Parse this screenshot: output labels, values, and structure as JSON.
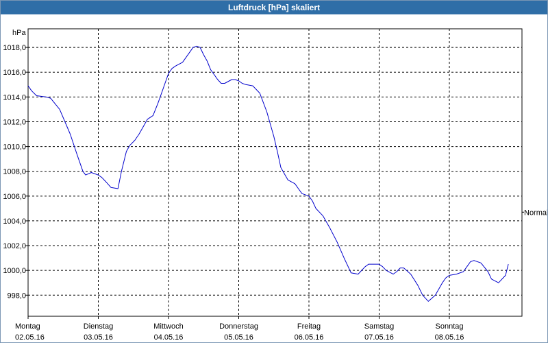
{
  "window": {
    "title": "Luftdruck [hPa] skaliert"
  },
  "chart_data": {
    "type": "line",
    "title": "Luftdruck [hPa] skaliert",
    "ylabel": "hPa",
    "xlabel": "",
    "ylim": [
      996.3,
      1019.5
    ],
    "grid": true,
    "yticks": [
      998,
      1000,
      1002,
      1004,
      1006,
      1008,
      1010,
      1012,
      1014,
      1016,
      1018
    ],
    "ytick_labels": [
      "998,0",
      "1000,0",
      "1002,0",
      "1004,0",
      "1006,0",
      "1008,0",
      "1010,0",
      "1012,0",
      "1014,0",
      "1016,0",
      "1018,0"
    ],
    "xticks": [
      {
        "day": "Montag",
        "date": "02.05.16"
      },
      {
        "day": "Dienstag",
        "date": "03.05.16"
      },
      {
        "day": "Mittwoch",
        "date": "04.05.16"
      },
      {
        "day": "Donnerstag",
        "date": "05.05.16"
      },
      {
        "day": "Freitag",
        "date": "06.05.16"
      },
      {
        "day": "Samstag",
        "date": "07.05.16"
      },
      {
        "day": "Sonntag",
        "date": "08.05.16"
      }
    ],
    "reference_line": {
      "label": "Normal",
      "value": 1004.7
    },
    "series_color": "#0000cc",
    "series": [
      {
        "x_days": [
          0,
          0.05,
          0.12,
          0.25,
          0.32,
          0.45,
          0.6,
          0.7,
          0.78,
          0.82,
          0.9,
          1.0,
          1.05,
          1.1,
          1.18,
          1.28,
          1.33,
          1.4,
          1.45,
          1.52,
          1.58,
          1.63,
          1.7,
          1.78,
          1.85,
          1.9,
          2.0,
          2.05,
          2.1,
          2.2,
          2.3,
          2.35,
          2.4,
          2.45,
          2.5,
          2.55,
          2.6,
          2.7,
          2.75,
          2.8,
          2.9,
          2.95,
          3.0,
          3.05,
          3.1,
          3.2,
          3.3,
          3.4,
          3.5,
          3.55,
          3.6,
          3.7,
          3.8,
          3.85,
          3.9,
          4.0,
          4.05,
          4.1,
          4.2,
          4.3,
          4.4,
          4.5,
          4.6,
          4.7,
          4.8,
          4.85,
          4.9,
          5.0,
          5.05,
          5.1,
          5.2,
          5.25,
          5.3,
          5.35,
          5.45,
          5.55,
          5.62,
          5.7,
          5.8,
          5.9,
          5.95,
          6.0,
          6.1,
          6.2,
          6.25,
          6.3,
          6.35,
          6.45,
          6.55,
          6.6,
          6.7,
          6.8,
          6.84
        ],
        "values": [
          1014.9,
          1014.5,
          1014.1,
          1014.0,
          1013.9,
          1013.0,
          1011.0,
          1009.3,
          1008.0,
          1007.7,
          1007.9,
          1007.7,
          1007.5,
          1007.2,
          1006.7,
          1006.6,
          1008.0,
          1009.6,
          1010.1,
          1010.5,
          1011.0,
          1011.5,
          1012.2,
          1012.5,
          1013.5,
          1014.3,
          1015.9,
          1016.3,
          1016.5,
          1016.8,
          1017.6,
          1018.0,
          1018.1,
          1018.0,
          1017.4,
          1016.9,
          1016.2,
          1015.4,
          1015.1,
          1015.1,
          1015.4,
          1015.4,
          1015.3,
          1015.1,
          1015.0,
          1014.9,
          1014.3,
          1012.8,
          1010.8,
          1009.6,
          1008.3,
          1007.3,
          1007.0,
          1006.6,
          1006.2,
          1006.0,
          1005.6,
          1005.0,
          1004.4,
          1003.4,
          1002.3,
          1001.0,
          999.8,
          999.7,
          1000.3,
          1000.5,
          1000.5,
          1000.5,
          1000.3,
          1000.0,
          999.7,
          999.9,
          1000.2,
          1000.2,
          999.7,
          998.8,
          998.0,
          997.5,
          998.0,
          999.0,
          999.4,
          999.6,
          999.7,
          999.9,
          1000.3,
          1000.7,
          1000.8,
          1000.6,
          999.9,
          999.3,
          999.0,
          999.6,
          1000.5
        ]
      }
    ]
  }
}
